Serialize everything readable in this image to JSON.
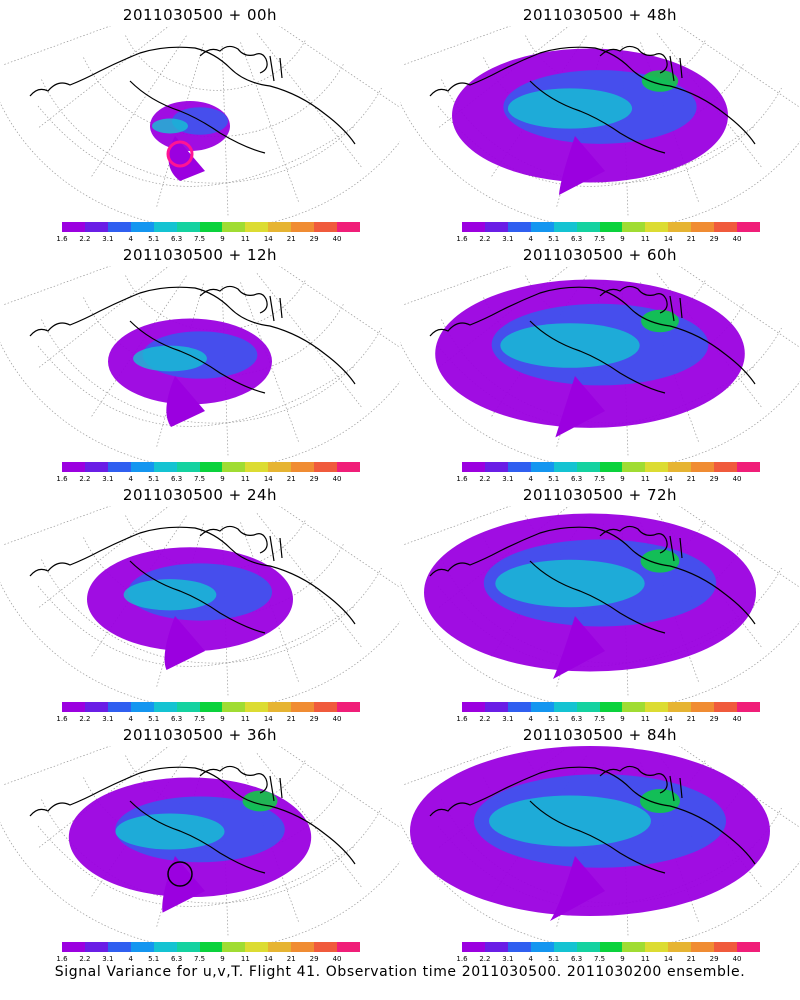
{
  "panels": [
    {
      "title": "2011030500 + 00h",
      "spread": 0.0,
      "marker": "magenta"
    },
    {
      "title": "2011030500 + 48h",
      "spread": 0.7,
      "marker": ""
    },
    {
      "title": "2011030500 + 12h",
      "spread": 0.3,
      "marker": ""
    },
    {
      "title": "2011030500 + 60h",
      "spread": 0.82,
      "marker": ""
    },
    {
      "title": "2011030500 + 24h",
      "spread": 0.45,
      "marker": ""
    },
    {
      "title": "2011030500 + 72h",
      "spread": 0.9,
      "marker": ""
    },
    {
      "title": "2011030500 + 36h",
      "spread": 0.58,
      "marker": "black"
    },
    {
      "title": "2011030500 + 84h",
      "spread": 1.0,
      "marker": ""
    }
  ],
  "colorbar": {
    "labels": [
      "1.6",
      "2.2",
      "3.1",
      "4",
      "5.1",
      "6.3",
      "7.5",
      "9",
      "11",
      "14",
      "21",
      "29",
      "40"
    ],
    "colors": [
      "#9b00e0",
      "#6a1ee6",
      "#2f5ff0",
      "#1496f0",
      "#14c3d2",
      "#14d2a0",
      "#0ad23c",
      "#a0dc32",
      "#dcdc32",
      "#e6b432",
      "#f08c32",
      "#f05a3c",
      "#f01e78"
    ]
  },
  "map_colors": {
    "low": "#9b00e0",
    "mid": "#2f5ff0",
    "high": "#14c3d2",
    "peak": "#0ad23c"
  },
  "caption": "Signal Variance for u,v,T. Flight 41. Observation time 2011030500. 2011030200 ensemble."
}
